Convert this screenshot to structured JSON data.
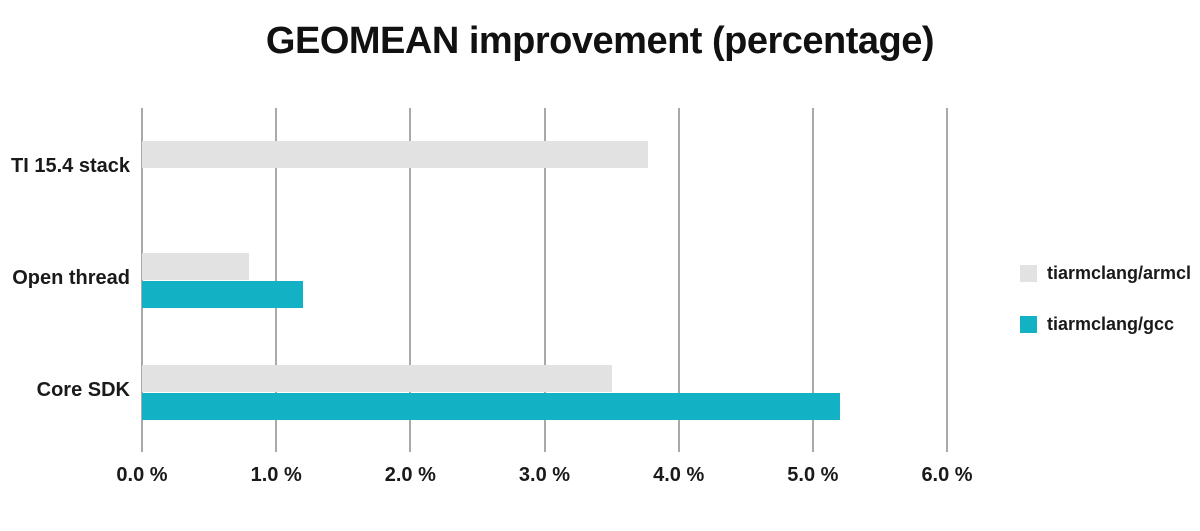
{
  "chart_data": {
    "type": "bar",
    "orientation": "horizontal",
    "title": "GEOMEAN improvement (percentage)",
    "categories": [
      "TI 15.4 stack",
      "Open thread",
      "Core SDK"
    ],
    "series": [
      {
        "name": "tiarmclang/armcl",
        "color": "#e2e2e2",
        "values": [
          3.77,
          0.8,
          3.5
        ]
      },
      {
        "name": "tiarmclang/gcc",
        "color": "#12b1c3",
        "values": [
          null,
          1.2,
          5.2
        ]
      }
    ],
    "x_axis": {
      "min": 0,
      "max": 6,
      "tick_step": 1,
      "tick_labels": [
        "0.0 %",
        "1.0 %",
        "2.0 %",
        "3.0 %",
        "4.0 %",
        "5.0 %",
        "6.0 %"
      ],
      "unit": "%"
    },
    "grid": true,
    "gridline_color": "#a9a9a9",
    "text_color": "#1a1a1a",
    "legend_position": "right",
    "background": "#ffffff"
  }
}
